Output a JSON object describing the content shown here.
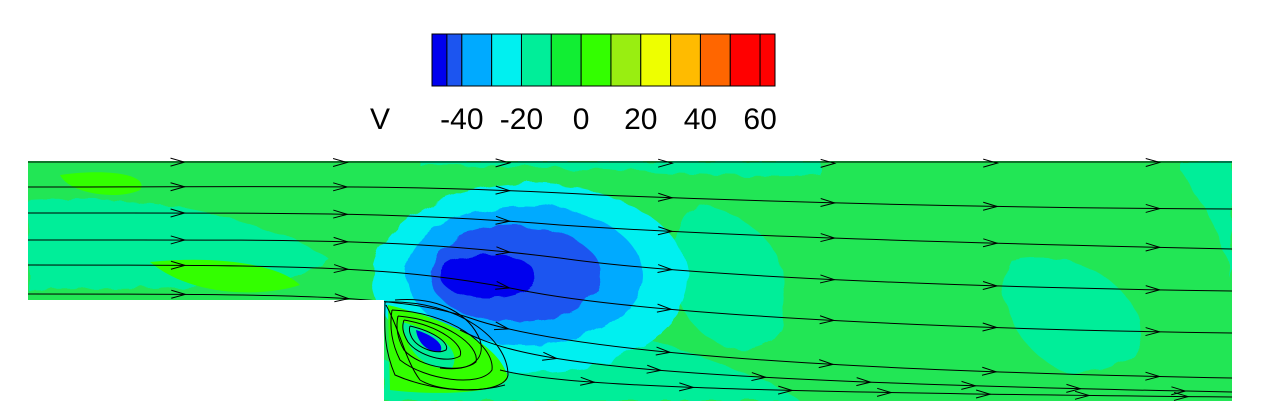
{
  "legend": {
    "variable": "V",
    "tick_labels": [
      "-40",
      "-20",
      "0",
      "20",
      "40",
      "60"
    ],
    "levels": [
      -50,
      -45,
      -40,
      -30,
      -20,
      -10,
      0,
      10,
      20,
      30,
      40,
      50,
      60,
      65
    ],
    "colors": [
      "#0000ee",
      "#1c55f0",
      "#00aaff",
      "#00f0f0",
      "#00ee99",
      "#11ee33",
      "#33ff00",
      "#99ee11",
      "#eeff00",
      "#ffbb00",
      "#ff6600",
      "#ff0000",
      "#ff0000"
    ]
  },
  "field_colors": {
    "background": "#22e655",
    "very_low": "#0000ee",
    "low": "#1c55f0",
    "mid_low": "#00aaff",
    "slightly_low": "#00f0f0",
    "near_zero": "#00ee99",
    "slightly_high": "#33ff00",
    "streamline": "#000000"
  }
}
